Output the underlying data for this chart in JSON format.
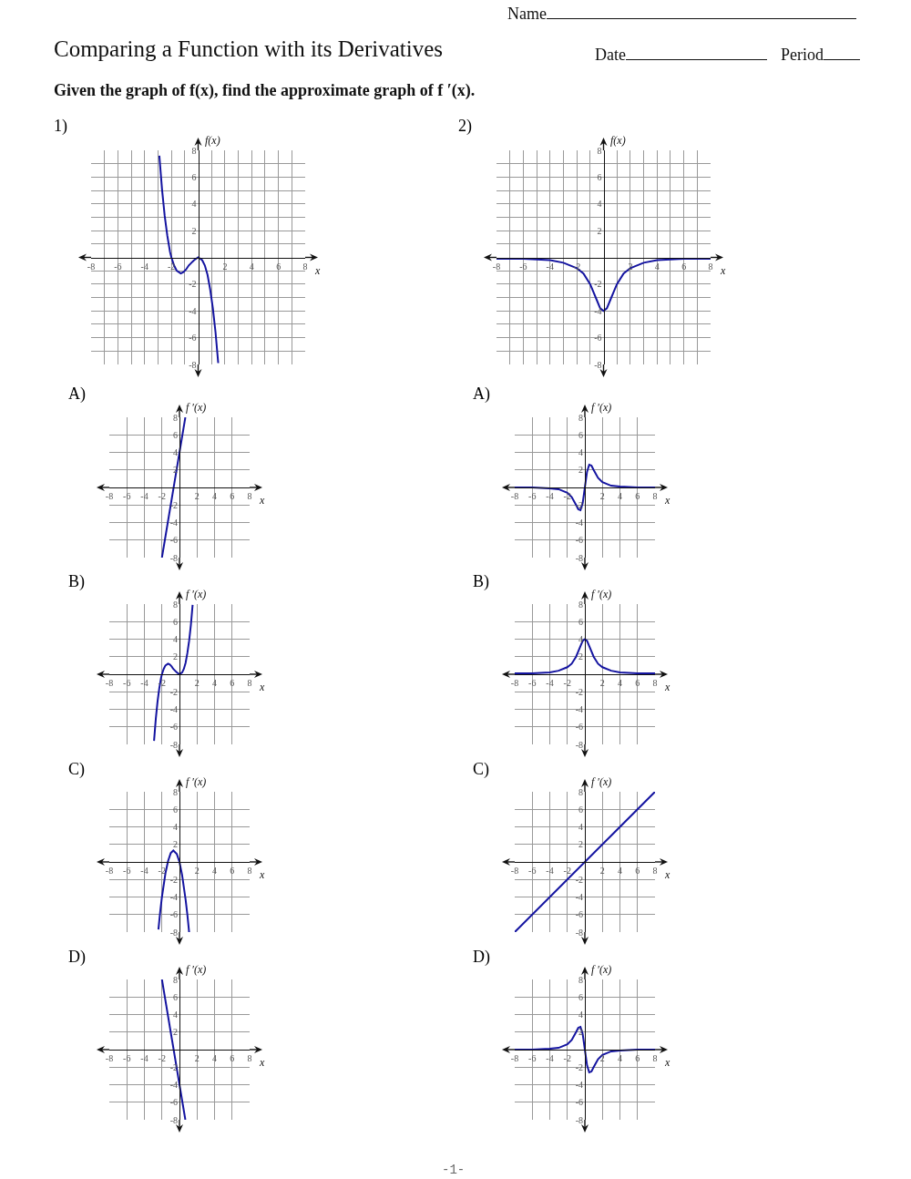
{
  "chart_data": [
    {
      "type": "other",
      "title": "Comparing a Function with its Derivatives",
      "subtitle": "Given the graph of f(x), find the approximate graph of f ′(x).",
      "annotations": [
        "Name",
        "Date",
        "Period",
        "-1-"
      ]
    },
    {
      "type": "line",
      "title": "1)",
      "xlabel": "x",
      "ylabel": "f(x)",
      "grid": true,
      "xlim": [
        -8,
        8
      ],
      "ylim": [
        -8,
        8
      ],
      "xticks": [
        -8,
        {
          "value": -7,
          "label": null
        },
        -6,
        {
          "value": -5,
          "label": null
        },
        -4,
        {
          "value": -3,
          "label": null
        },
        -2,
        {
          "value": -1,
          "label": null
        },
        {
          "value": 1,
          "label": null
        },
        2,
        {
          "value": 3,
          "label": null
        },
        4,
        {
          "value": 5,
          "label": null
        },
        6,
        {
          "value": 7,
          "label": null
        },
        8
      ],
      "yticks": [
        -8,
        {
          "value": -7,
          "label": null
        },
        -6,
        {
          "value": -5,
          "label": null
        },
        -4,
        {
          "value": -3,
          "label": null
        },
        -2,
        {
          "value": -1,
          "label": null
        },
        {
          "value": 1,
          "label": null
        },
        2,
        {
          "value": 3,
          "label": null
        },
        4,
        {
          "value": 5,
          "label": null
        },
        6,
        {
          "value": 7,
          "label": null
        },
        8
      ],
      "x": [
        -2.9,
        -2.7,
        -2.5,
        -2.3,
        -2.1,
        -2,
        -1.8,
        -1.6,
        -1.3,
        -1.1,
        -0.9,
        -0.7,
        -0.5,
        -0.3,
        0,
        0.3,
        0.5,
        0.7,
        0.9,
        1.1,
        1.3,
        1.5
      ],
      "series": [
        {
          "color": "#1414a0",
          "values": [
            7.6,
            5.1,
            3.1,
            1.6,
            0.4,
            0,
            -0.6,
            -1,
            -1.2,
            -1.1,
            -0.9,
            -0.6,
            -0.4,
            -0.2,
            0,
            -0.2,
            -0.6,
            -1.3,
            -2.4,
            -3.8,
            -5.6,
            -7.9
          ]
        }
      ]
    },
    {
      "type": "line",
      "title": "2)",
      "xlabel": "x",
      "ylabel": "f(x)",
      "grid": true,
      "xlim": [
        -8,
        8
      ],
      "ylim": [
        -8,
        8
      ],
      "xticks": [
        -8,
        {
          "value": -7,
          "label": null
        },
        -6,
        {
          "value": -5,
          "label": null
        },
        -4,
        {
          "value": -3,
          "label": null
        },
        -2,
        {
          "value": -1,
          "label": null
        },
        {
          "value": 1,
          "label": null
        },
        2,
        {
          "value": 3,
          "label": null
        },
        4,
        {
          "value": 5,
          "label": null
        },
        6,
        {
          "value": 7,
          "label": null
        },
        8
      ],
      "yticks": [
        -8,
        {
          "value": -7,
          "label": null
        },
        -6,
        {
          "value": -5,
          "label": null
        },
        -4,
        {
          "value": -3,
          "label": null
        },
        -2,
        {
          "value": -1,
          "label": null
        },
        {
          "value": 1,
          "label": null
        },
        2,
        {
          "value": 3,
          "label": null
        },
        4,
        {
          "value": 5,
          "label": null
        },
        6,
        {
          "value": 7,
          "label": null
        },
        8
      ],
      "x": [
        -8,
        -6,
        -4,
        -3,
        -2,
        -1.5,
        -1,
        -0.75,
        -0.5,
        -0.25,
        0,
        0.25,
        0.5,
        0.75,
        1,
        1.5,
        2,
        3,
        4,
        6,
        8
      ],
      "series": [
        {
          "color": "#1414a0",
          "values": [
            -0.1,
            -0.1,
            -0.2,
            -0.4,
            -0.8,
            -1.2,
            -2,
            -2.6,
            -3.2,
            -3.8,
            -4,
            -3.8,
            -3.2,
            -2.6,
            -2,
            -1.2,
            -0.8,
            -0.4,
            -0.2,
            -0.1,
            -0.1
          ]
        }
      ]
    },
    {
      "type": "line",
      "title": "A)",
      "xlabel": "x",
      "ylabel": "f ′(x)",
      "grid": true,
      "xlim": [
        -8,
        8
      ],
      "ylim": [
        -8,
        8
      ],
      "xticks": [
        -8,
        -6,
        -4,
        -2,
        2,
        4,
        6,
        8
      ],
      "yticks": [
        -8,
        -6,
        -4,
        -2,
        2,
        4,
        6,
        8
      ],
      "x": [
        -2,
        0.67
      ],
      "series": [
        {
          "color": "#1414a0",
          "values": [
            -8,
            8
          ]
        }
      ]
    },
    {
      "type": "line",
      "title": "A)",
      "xlabel": "x",
      "ylabel": "f ′(x)",
      "grid": true,
      "xlim": [
        -8,
        8
      ],
      "ylim": [
        -8,
        8
      ],
      "xticks": [
        -8,
        -6,
        -4,
        -2,
        2,
        4,
        6,
        8
      ],
      "yticks": [
        -8,
        -6,
        -4,
        -2,
        2,
        4,
        6,
        8
      ],
      "x": [
        -8,
        -6,
        -4,
        -3,
        -2,
        -1.5,
        -1,
        -0.75,
        -0.5,
        -0.25,
        0,
        0.25,
        0.5,
        0.75,
        1,
        1.5,
        2,
        3,
        4,
        6,
        8
      ],
      "series": [
        {
          "color": "#1414a0",
          "values": [
            0,
            0,
            -0.1,
            -0.2,
            -0.6,
            -1.1,
            -2,
            -2.5,
            -2.6,
            -1.8,
            0,
            1.8,
            2.6,
            2.5,
            2,
            1.1,
            0.6,
            0.2,
            0.1,
            0,
            0
          ]
        }
      ]
    },
    {
      "type": "line",
      "title": "B)",
      "xlabel": "x",
      "ylabel": "f ′(x)",
      "grid": true,
      "xlim": [
        -8,
        8
      ],
      "ylim": [
        -8,
        8
      ],
      "xticks": [
        -8,
        -6,
        -4,
        -2,
        2,
        4,
        6,
        8
      ],
      "yticks": [
        -8,
        -6,
        -4,
        -2,
        2,
        4,
        6,
        8
      ],
      "x": [
        -2.9,
        -2.7,
        -2.5,
        -2.3,
        -2.1,
        -2,
        -1.8,
        -1.6,
        -1.3,
        -1.1,
        -0.9,
        -0.7,
        -0.5,
        -0.3,
        0,
        0.3,
        0.5,
        0.7,
        0.9,
        1.1,
        1.3,
        1.5
      ],
      "series": [
        {
          "color": "#1414a0",
          "values": [
            -7.6,
            -5.1,
            -3.1,
            -1.6,
            -0.4,
            0,
            0.6,
            1,
            1.2,
            1.1,
            0.9,
            0.6,
            0.4,
            0.2,
            0,
            0.2,
            0.6,
            1.3,
            2.4,
            3.8,
            5.6,
            7.9
          ]
        }
      ]
    },
    {
      "type": "line",
      "title": "B)",
      "xlabel": "x",
      "ylabel": "f ′(x)",
      "grid": true,
      "xlim": [
        -8,
        8
      ],
      "ylim": [
        -8,
        8
      ],
      "xticks": [
        -8,
        -6,
        -4,
        -2,
        2,
        4,
        6,
        8
      ],
      "yticks": [
        -8,
        -6,
        -4,
        -2,
        2,
        4,
        6,
        8
      ],
      "x": [
        -8,
        -6,
        -4,
        -3,
        -2,
        -1.5,
        -1,
        -0.75,
        -0.5,
        -0.25,
        0,
        0.25,
        0.5,
        0.75,
        1,
        1.5,
        2,
        3,
        4,
        6,
        8
      ],
      "series": [
        {
          "color": "#1414a0",
          "values": [
            0.1,
            0.1,
            0.2,
            0.4,
            0.8,
            1.2,
            2,
            2.6,
            3.2,
            3.8,
            4,
            3.8,
            3.2,
            2.6,
            2,
            1.2,
            0.8,
            0.4,
            0.2,
            0.1,
            0.1
          ]
        }
      ]
    },
    {
      "type": "line",
      "title": "C)",
      "xlabel": "x",
      "ylabel": "f ′(x)",
      "grid": true,
      "xlim": [
        -8,
        8
      ],
      "ylim": [
        -8,
        8
      ],
      "xticks": [
        -8,
        -6,
        -4,
        -2,
        2,
        4,
        6,
        8
      ],
      "yticks": [
        -8,
        -6,
        -4,
        -2,
        2,
        4,
        6,
        8
      ],
      "x": [
        -2.4,
        -2.2,
        -2,
        -1.6,
        -1.3,
        -1,
        -0.7,
        -0.3,
        0,
        0.3,
        0.7,
        0.9,
        1.1
      ],
      "series": [
        {
          "color": "#1414a0",
          "values": [
            -7.7,
            -5.7,
            -4,
            -1.3,
            0.1,
            1,
            1.3,
            0.9,
            0,
            -1.5,
            -4.3,
            -6,
            -8
          ]
        }
      ]
    },
    {
      "type": "line",
      "title": "C)",
      "xlabel": "x",
      "ylabel": "f ′(x)",
      "grid": true,
      "xlim": [
        -8,
        8
      ],
      "ylim": [
        -8,
        8
      ],
      "xticks": [
        -8,
        -6,
        -4,
        -2,
        2,
        4,
        6,
        8
      ],
      "yticks": [
        -8,
        -6,
        -4,
        -2,
        2,
        4,
        6,
        8
      ],
      "x": [
        -8,
        8
      ],
      "series": [
        {
          "color": "#1414a0",
          "values": [
            -8,
            8
          ]
        }
      ]
    },
    {
      "type": "line",
      "title": "D)",
      "xlabel": "x",
      "ylabel": "f ′(x)",
      "grid": true,
      "xlim": [
        -8,
        8
      ],
      "ylim": [
        -8,
        8
      ],
      "xticks": [
        -8,
        -6,
        -4,
        -2,
        2,
        4,
        6,
        8
      ],
      "yticks": [
        -8,
        -6,
        -4,
        -2,
        2,
        4,
        6,
        8
      ],
      "x": [
        -2,
        0.67
      ],
      "series": [
        {
          "color": "#1414a0",
          "values": [
            8,
            -8
          ]
        }
      ]
    },
    {
      "type": "line",
      "title": "D)",
      "xlabel": "x",
      "ylabel": "f ′(x)",
      "grid": true,
      "xlim": [
        -8,
        8
      ],
      "ylim": [
        -8,
        8
      ],
      "xticks": [
        -8,
        -6,
        -4,
        -2,
        2,
        4,
        6,
        8
      ],
      "yticks": [
        -8,
        -6,
        -4,
        -2,
        2,
        4,
        6,
        8
      ],
      "x": [
        -8,
        -6,
        -4,
        -3,
        -2,
        -1.5,
        -1,
        -0.75,
        -0.5,
        -0.25,
        0,
        0.25,
        0.5,
        0.75,
        1,
        1.5,
        2,
        3,
        4,
        6,
        8
      ],
      "series": [
        {
          "color": "#1414a0",
          "values": [
            0,
            0,
            0.1,
            0.2,
            0.6,
            1.1,
            2,
            2.5,
            2.6,
            1.8,
            0,
            -1.8,
            -2.6,
            -2.5,
            -2,
            -1.1,
            -0.6,
            -0.2,
            -0.1,
            0,
            0
          ]
        }
      ]
    }
  ]
}
